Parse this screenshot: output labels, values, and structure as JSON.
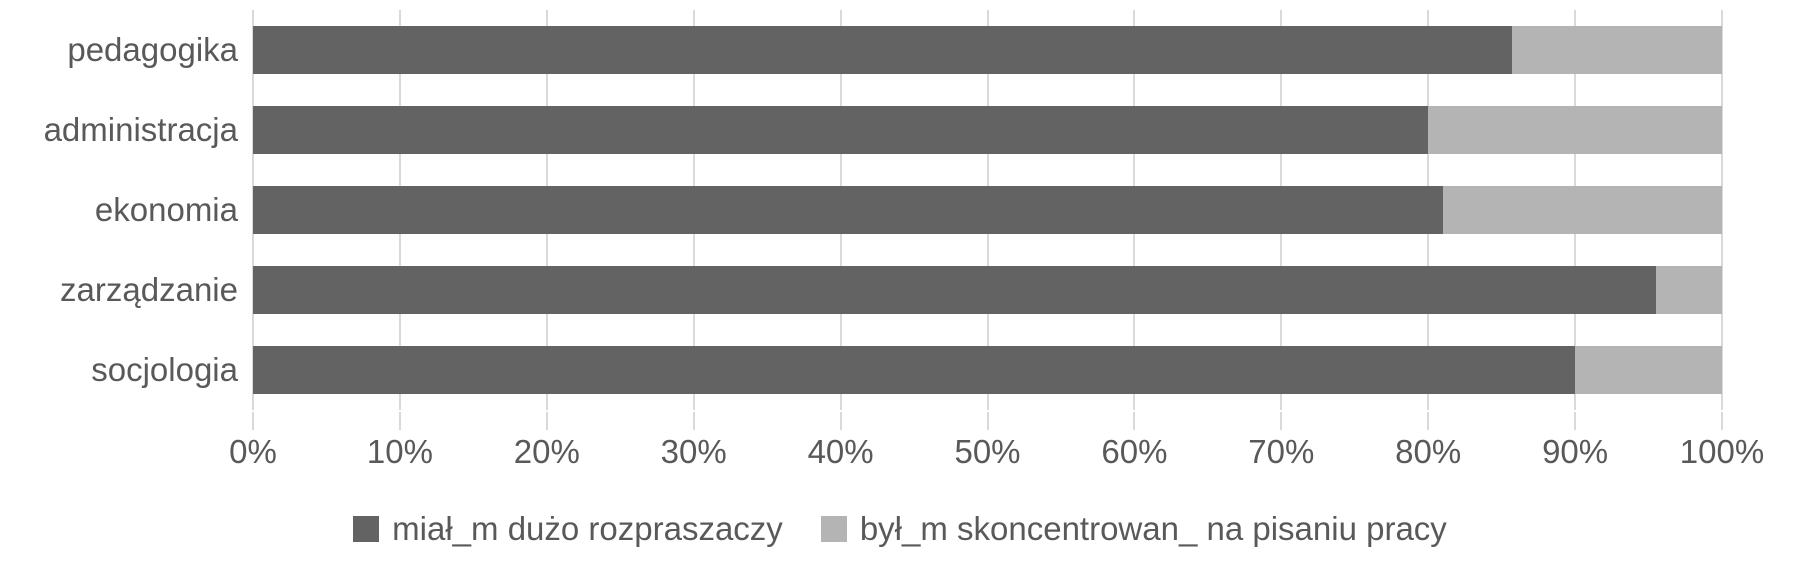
{
  "chart_data": {
    "type": "bar",
    "variant": "horizontal-stacked-100",
    "title": "",
    "categories": [
      "pedagogika",
      "administracja",
      "ekonomia",
      "zarządzanie",
      "socjologia"
    ],
    "series": [
      {
        "name": "miał_m dużo rozpraszaczy",
        "color": "#636363",
        "values": [
          85.7,
          80,
          81,
          95.5,
          90
        ]
      },
      {
        "name": "był_m skoncentrowan_ na pisaniu pracy",
        "color": "#b4b4b4",
        "values": [
          14.3,
          20,
          19,
          4.5,
          10
        ]
      }
    ],
    "x_axis": {
      "min": 0,
      "max": 100,
      "tick_step": 10,
      "tick_labels": [
        "0%",
        "10%",
        "20%",
        "30%",
        "40%",
        "50%",
        "60%",
        "70%",
        "80%",
        "90%",
        "100%"
      ]
    },
    "grid": true,
    "legend_position": "bottom",
    "colors": {
      "gridline": "#d9d9d9",
      "tick": "#d9d9d9",
      "text": "#595959",
      "background": "#ffffff"
    }
  }
}
